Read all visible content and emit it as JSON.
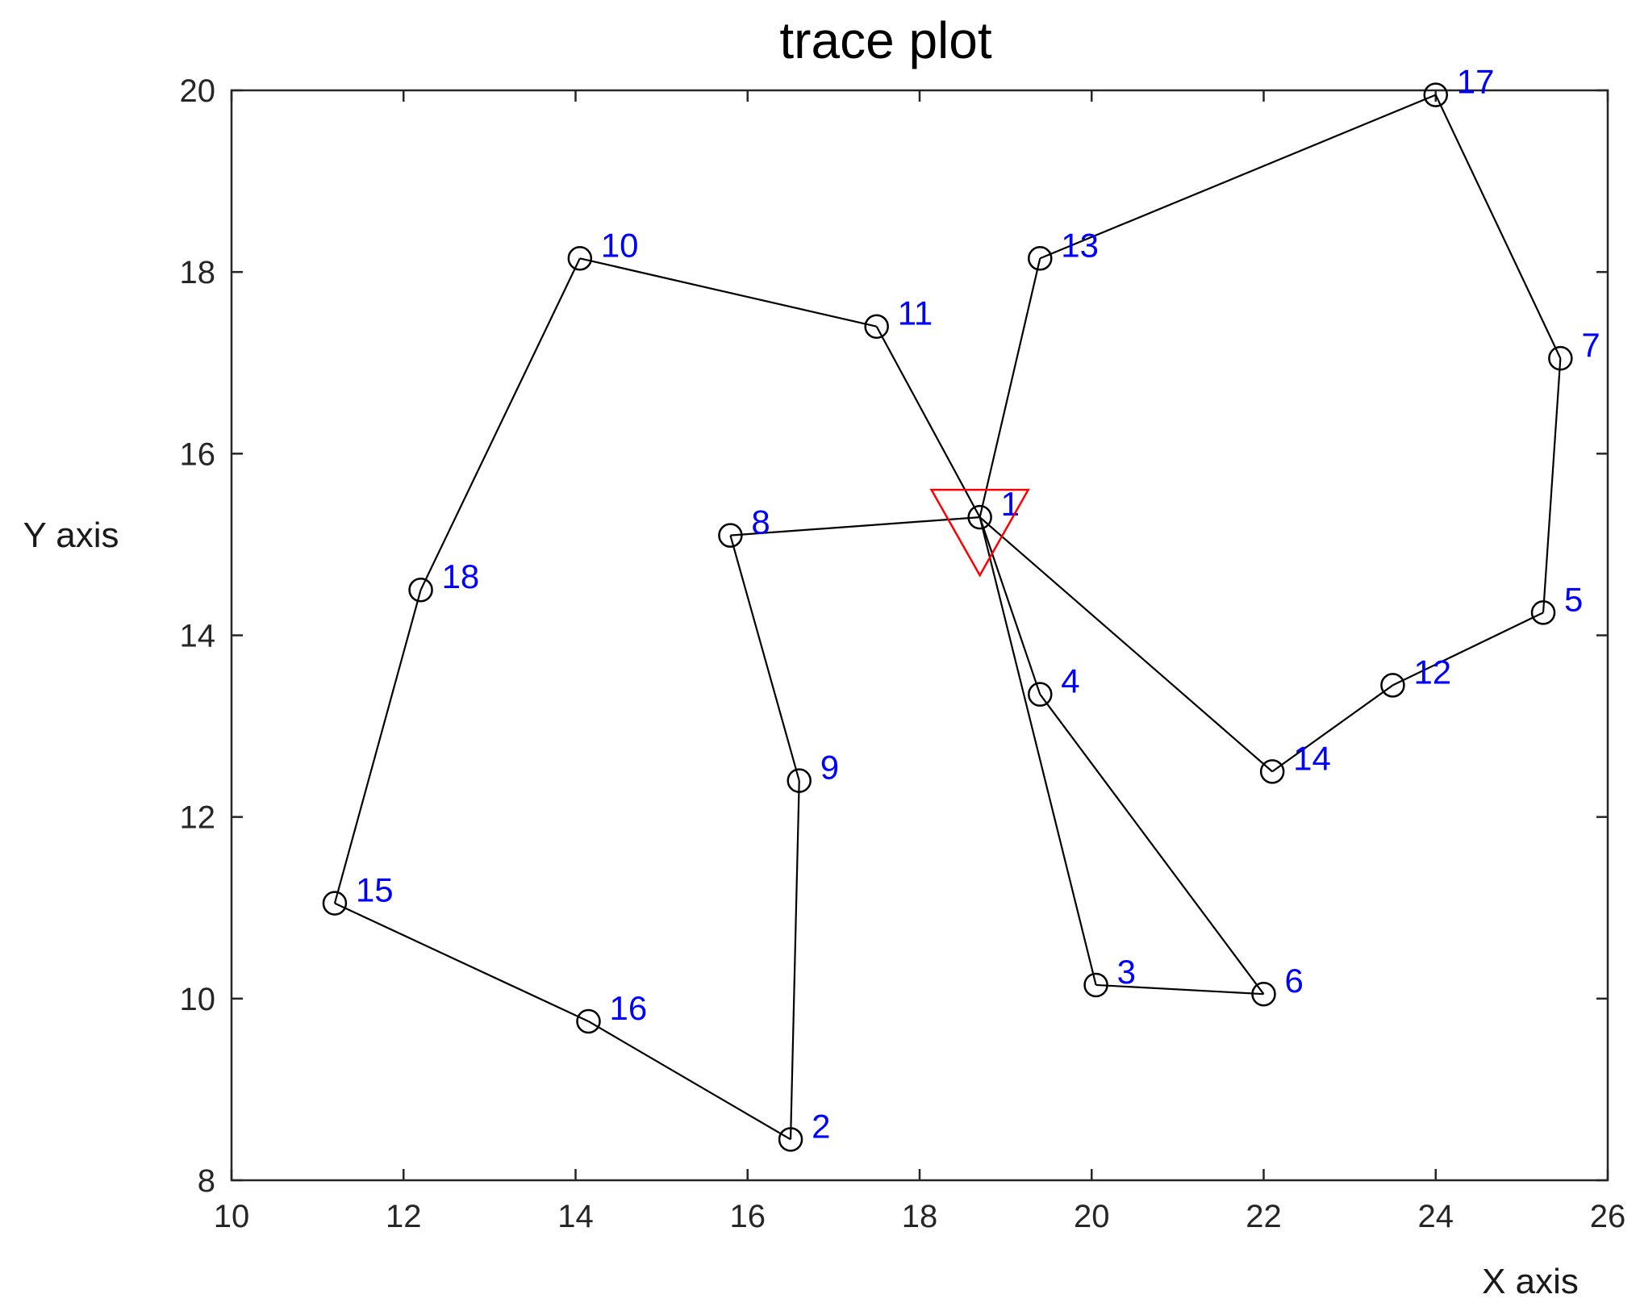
{
  "chart_data": {
    "type": "line",
    "title": "trace plot",
    "xlabel": "X axis",
    "ylabel": "Y axis",
    "xlim": [
      10,
      26
    ],
    "ylim": [
      8,
      20
    ],
    "xticks": [
      10,
      12,
      14,
      16,
      18,
      20,
      22,
      24,
      26
    ],
    "yticks": [
      8,
      10,
      12,
      14,
      16,
      18,
      20
    ],
    "grid": false,
    "points": [
      {
        "label": "1",
        "x": 18.7,
        "y": 15.3
      },
      {
        "label": "2",
        "x": 16.5,
        "y": 8.45
      },
      {
        "label": "3",
        "x": 20.05,
        "y": 10.15
      },
      {
        "label": "4",
        "x": 19.4,
        "y": 13.35
      },
      {
        "label": "5",
        "x": 25.25,
        "y": 14.25
      },
      {
        "label": "6",
        "x": 22.0,
        "y": 10.05
      },
      {
        "label": "7",
        "x": 25.45,
        "y": 17.05
      },
      {
        "label": "8",
        "x": 15.8,
        "y": 15.1
      },
      {
        "label": "9",
        "x": 16.6,
        "y": 12.4
      },
      {
        "label": "10",
        "x": 14.05,
        "y": 18.15
      },
      {
        "label": "11",
        "x": 17.5,
        "y": 17.4
      },
      {
        "label": "12",
        "x": 23.5,
        "y": 13.45
      },
      {
        "label": "13",
        "x": 19.4,
        "y": 18.15
      },
      {
        "label": "14",
        "x": 22.1,
        "y": 12.5
      },
      {
        "label": "15",
        "x": 11.2,
        "y": 11.05
      },
      {
        "label": "16",
        "x": 14.15,
        "y": 9.75
      },
      {
        "label": "17",
        "x": 24.0,
        "y": 19.95
      },
      {
        "label": "18",
        "x": 12.2,
        "y": 14.5
      }
    ],
    "route": [
      "1",
      "8",
      "9",
      "2",
      "16",
      "15",
      "18",
      "10",
      "11",
      "1",
      "13",
      "17",
      "7",
      "5",
      "12",
      "14",
      "1",
      "3",
      "6",
      "4",
      "1"
    ],
    "start_marker": {
      "label": "1",
      "shape": "inverted-triangle",
      "color": "#ff0000"
    },
    "colors": {
      "line": "#000000",
      "marker": "#000000",
      "point_label": "#0000ff",
      "start_marker": "#ff0000"
    }
  }
}
